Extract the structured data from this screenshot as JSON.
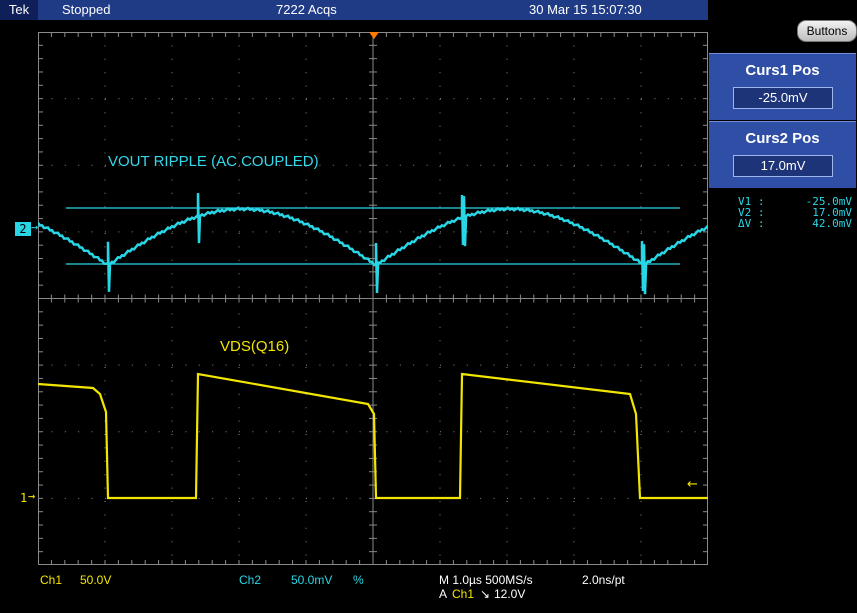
{
  "header": {
    "brand": "Tek",
    "status": "Stopped",
    "acquisitions": "7222 Acqs",
    "datetime": "30 Mar 15 15:07:30"
  },
  "traces": {
    "vout_label": "VOUT RIPPLE (AC COUPLED)",
    "vds_label": "VDS(Q16)",
    "ch2_marker": "2",
    "ch1_marker": "1",
    "vout_color": "#29d6e6",
    "vds_color": "#f2e600"
  },
  "side_panel": {
    "buttons_label": "Buttons",
    "curs1_title": "Curs1 Pos",
    "curs1_value": "-25.0mV",
    "curs2_title": "Curs2 Pos",
    "curs2_value": "17.0mV",
    "readout": [
      {
        "label": "V1 :",
        "value": "-25.0mV"
      },
      {
        "label": "V2 :",
        "value": "17.0mV"
      },
      {
        "label": "ΔV :",
        "value": "42.0mV"
      }
    ]
  },
  "footer": {
    "ch1_name": "Ch1",
    "ch1_scale": "50.0V",
    "ch2_name": "Ch2",
    "ch2_scale": "50.0mV",
    "ch2_bw": "%",
    "timebase": "M 1.0µs 500MS/s",
    "resolution": "2.0ns/pt",
    "trigger_prefix": "A",
    "trigger_source": "Ch1",
    "trigger_slope": "↘",
    "trigger_level": "12.0V"
  }
}
